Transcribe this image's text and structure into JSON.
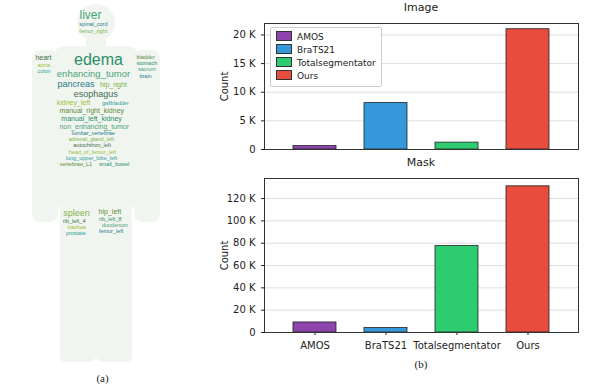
{
  "chart_data": [
    {
      "type": "wordcloud",
      "words": [
        "edema",
        "enhancing_tumor",
        "liver",
        "pancreas",
        "spleen",
        "esophagus",
        "kidney_left",
        "heart",
        "hip_right",
        "hip_left",
        "manual_right_kidney",
        "manual_left_kidney",
        "non_enhancing_tumor",
        "bladder",
        "spinal_cord",
        "lumbar_vertebrae",
        "rib_left_8",
        "rib_left_4",
        "gallbladder",
        "stomach",
        "duodenum",
        "aorta",
        "sacrum",
        "colon",
        "trachea",
        "brain",
        "adrenal_gland_left",
        "autochthon_left",
        "head_of_femur_left",
        "femur_left",
        "femur_right",
        "lung_upper_lobe_left",
        "vertebrae_L1",
        "prostate",
        "small_bowel"
      ],
      "annotations": [
        "(a)"
      ]
    },
    {
      "type": "bar",
      "title": "Image",
      "categories": [
        "AMOS",
        "BraTS21",
        "Totalsegmentator",
        "Ours"
      ],
      "values": [
        600,
        8100,
        1200,
        21000
      ],
      "colors": [
        "#8e44ad",
        "#3498db",
        "#2ecc71",
        "#e74c3c"
      ],
      "ylabel": "Count",
      "ylim": [
        0,
        22000
      ],
      "yticks": [
        0,
        {
          "value": 5000,
          "label": "5 K"
        },
        {
          "value": 10000,
          "label": "10 K"
        },
        {
          "value": 15000,
          "label": "15 K"
        },
        {
          "value": 20000,
          "label": "20 K"
        }
      ],
      "grid": true,
      "legend": "upper left",
      "tick_labels": "y"
    },
    {
      "type": "bar",
      "title": "Mask",
      "categories": [
        "AMOS",
        "BraTS21",
        "Totalsegmentator",
        "Ours"
      ],
      "values": [
        9000,
        4000,
        77500,
        131000
      ],
      "colors": [
        "#8e44ad",
        "#3498db",
        "#2ecc71",
        "#e74c3c"
      ],
      "ylabel": "Count",
      "ylim": [
        0,
        138000
      ],
      "yticks": [
        0,
        {
          "value": 20000,
          "label": "20 K"
        },
        {
          "value": 40000,
          "label": "40 K"
        },
        {
          "value": 60000,
          "label": "60 K"
        },
        {
          "value": 80000,
          "label": "80 K"
        },
        {
          "value": 100000,
          "label": "100 K"
        },
        {
          "value": 120000,
          "label": "120 K"
        }
      ],
      "grid": true,
      "annotations": [
        "(b)"
      ]
    }
  ]
}
